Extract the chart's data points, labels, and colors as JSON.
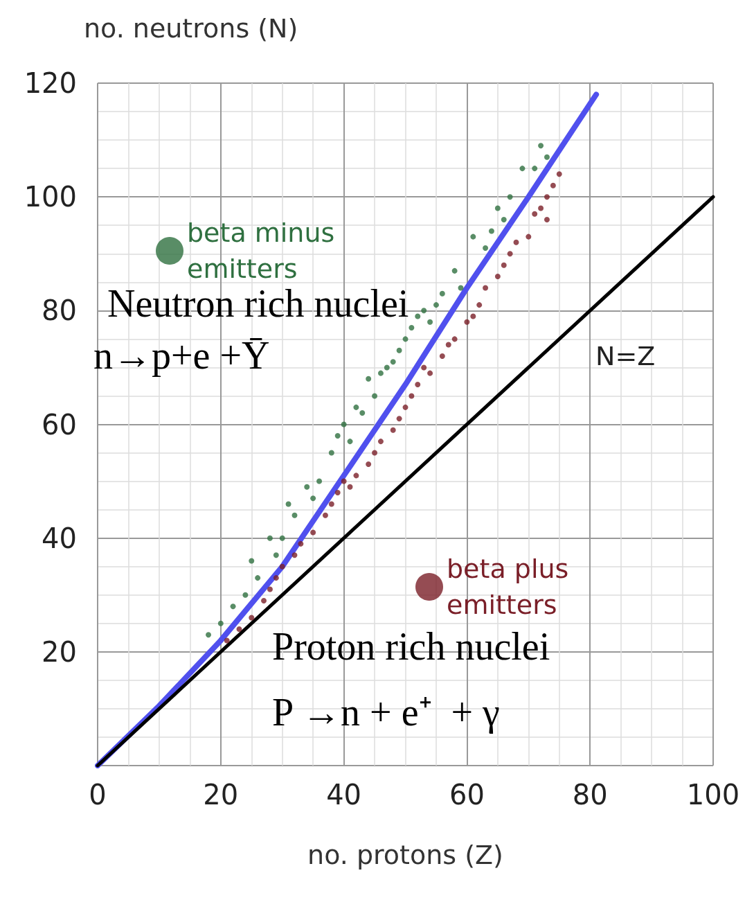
{
  "chart_data": {
    "type": "scatter",
    "xlabel": "no. protons (Z)",
    "ylabel": "no. neutrons (N)",
    "xlim": [
      0,
      100
    ],
    "xticks": [
      0,
      20,
      40,
      60,
      80,
      100
    ],
    "ylim": [
      0,
      120
    ],
    "yticks": [
      20,
      40,
      60,
      80,
      100,
      120
    ],
    "grid": true,
    "legend": "top left",
    "annotations": [
      "Neutron rich nuclei",
      "n→p+e +Ȳ",
      "Proton rich nuclei",
      "P →n + e⁺  + γ",
      "N=Z"
    ],
    "series": [
      {
        "name": "beta minus emitters",
        "marker": "circle",
        "color": "#2f7040",
        "x": [
          18,
          20,
          22,
          24,
          25,
          26,
          28,
          29,
          30,
          31,
          32,
          34,
          35,
          36,
          38,
          39,
          40,
          41,
          42,
          43,
          44,
          45,
          46,
          47,
          48,
          49,
          50,
          51,
          52,
          53,
          54,
          55,
          56,
          58,
          59,
          61,
          63,
          64,
          65,
          66,
          67,
          69,
          71,
          72,
          73
        ],
        "values": [
          23,
          25,
          28,
          30,
          36,
          33,
          40,
          37,
          40,
          46,
          44,
          49,
          47,
          50,
          55,
          58,
          60,
          57,
          63,
          62,
          68,
          65,
          69,
          70,
          71,
          73,
          75,
          77,
          79,
          80,
          78,
          81,
          83,
          87,
          84,
          93,
          91,
          94,
          98,
          96,
          100,
          105,
          105,
          109,
          107
        ]
      },
      {
        "name": "beta plus emitters",
        "marker": "circle",
        "color": "#7a1f28",
        "x": [
          21,
          23,
          25,
          27,
          28,
          29,
          30,
          32,
          33,
          35,
          37,
          38,
          39,
          40,
          41,
          42,
          44,
          45,
          46,
          48,
          49,
          50,
          51,
          52,
          53,
          54,
          56,
          57,
          58,
          60,
          61,
          62,
          63,
          65,
          66,
          67,
          68,
          70,
          71,
          72,
          73,
          73,
          74,
          75
        ],
        "values": [
          22,
          24,
          26,
          29,
          31,
          33,
          35,
          37,
          39,
          41,
          44,
          46,
          48,
          50,
          49,
          51,
          53,
          55,
          57,
          59,
          61,
          63,
          65,
          67,
          70,
          69,
          72,
          74,
          75,
          78,
          79,
          81,
          84,
          86,
          88,
          90,
          92,
          93,
          97,
          98,
          100,
          96,
          102,
          104
        ]
      },
      {
        "type": "line",
        "marker": "none",
        "color": "#5050ee",
        "x": [
          0,
          10,
          20,
          30,
          40,
          50,
          60,
          70,
          81
        ],
        "values": [
          0,
          10.5,
          22,
          35,
          51,
          67,
          84,
          100,
          118
        ]
      },
      {
        "type": "line",
        "marker": "none",
        "color": "#000000",
        "x": [
          0,
          100
        ],
        "values": [
          0,
          100
        ]
      }
    ]
  }
}
